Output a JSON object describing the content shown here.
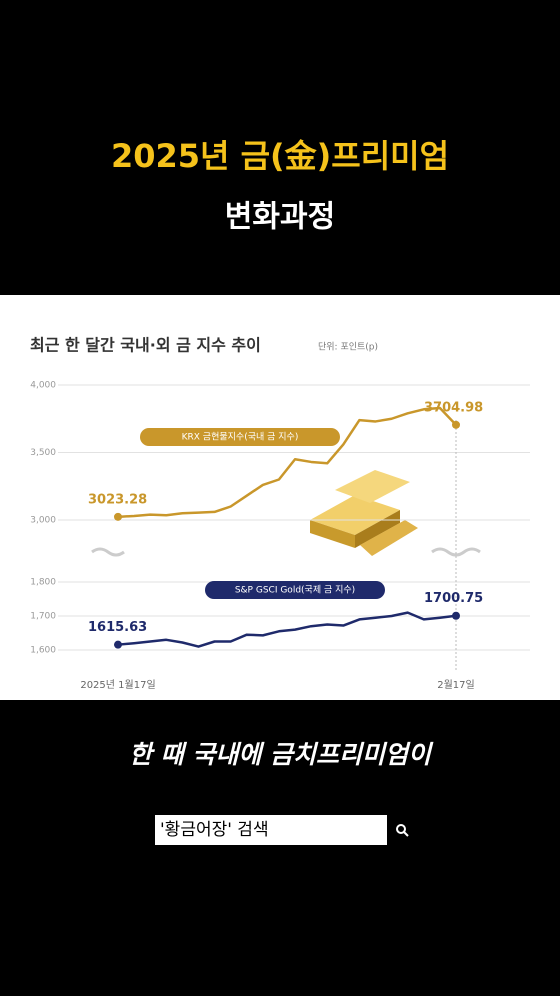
{
  "header": {
    "title": "2025년 금(金)프리미엄",
    "subtitle": "변화과정"
  },
  "chart_data": {
    "type": "line",
    "title": "최근 한 달간 국내·외 금 지수 추이",
    "subtitle": "단위: 포인트(p)",
    "categories": [
      "2025년 1월17일",
      null,
      null,
      null,
      null,
      null,
      null,
      null,
      null,
      null,
      null,
      null,
      null,
      null,
      null,
      null,
      null,
      null,
      null,
      null,
      null,
      "2월17일"
    ],
    "series": [
      {
        "name": "KRX 금현물지수(국내 금 지수)",
        "color": "#c9972b",
        "values": [
          3023.28,
          3030,
          3040,
          3035,
          3050,
          3055,
          3060,
          3100,
          3180,
          3260,
          3300,
          3450,
          3430,
          3420,
          3560,
          3740,
          3730,
          3750,
          3790,
          3820,
          3830,
          3704.98
        ],
        "value_labels": [
          "3023.28",
          null,
          null,
          null,
          null,
          null,
          null,
          null,
          null,
          null,
          null,
          null,
          null,
          null,
          null,
          null,
          null,
          null,
          null,
          null,
          null,
          "3704.98"
        ]
      },
      {
        "name": "S&P GSCI Gold(국제 금 지수)",
        "color": "#1f2a6b",
        "axis": "y2",
        "values": [
          1615.63,
          1620,
          1625,
          1630,
          1622,
          1610,
          1625,
          1625,
          1645,
          1643,
          1655,
          1660,
          1670,
          1675,
          1672,
          1690,
          1695,
          1700,
          1710,
          1690,
          1695,
          1700.75
        ],
        "value_labels": [
          "1615.63",
          null,
          null,
          null,
          null,
          null,
          null,
          null,
          null,
          null,
          null,
          null,
          null,
          null,
          null,
          null,
          null,
          null,
          null,
          null,
          null,
          "1700.75"
        ]
      }
    ],
    "ylim": [
      2900,
      4100
    ],
    "yticks": [
      {
        "value": 3000,
        "label": "3,000"
      },
      {
        "value": 3500,
        "label": "3,500"
      },
      {
        "value": 4000,
        "label": "4,000"
      }
    ],
    "y2lim": [
      1560,
      1830
    ],
    "y2ticks": [
      {
        "value": 1600,
        "label": "1,600"
      },
      {
        "value": 1700,
        "label": "1,700"
      },
      {
        "value": 1800,
        "label": "1,800"
      }
    ],
    "grid": true
  },
  "caption": "한 때 국내에 금치프리미엄이",
  "search": {
    "query": "'황금어장' 검색"
  }
}
